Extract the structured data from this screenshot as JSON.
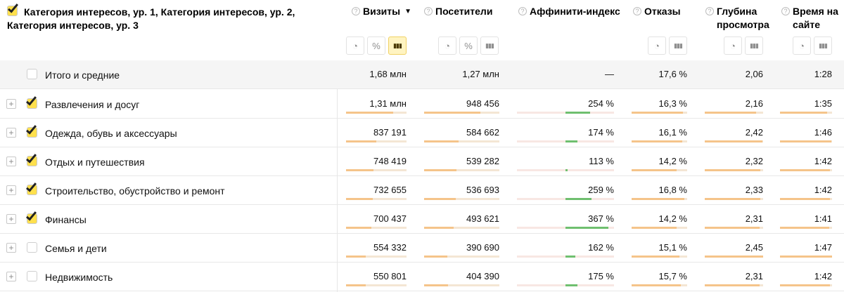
{
  "header": {
    "dimension_title": "Категория интересов, ур. 1, Категория интересов, ур. 2, Категория интересов, ур. 3",
    "columns": [
      {
        "key": "visits",
        "label": "Визиты",
        "sorted": true,
        "sort_icon": "▼",
        "buttons": [
          "pie-chart-icon",
          "percent-icon",
          "bar-chart-icon"
        ],
        "active_button": 2
      },
      {
        "key": "visitors",
        "label": "Посетители",
        "sorted": false,
        "buttons": [
          "pie-chart-icon",
          "percent-icon",
          "bar-chart-icon"
        ],
        "active_button": -1
      },
      {
        "key": "affinity",
        "label": "Аффинити-индекс",
        "sorted": false,
        "buttons": [],
        "active_button": -1
      },
      {
        "key": "bounce",
        "label": "Отказы",
        "sorted": false,
        "buttons": [
          "pie-chart-icon",
          "bar-chart-icon"
        ],
        "active_button": -1
      },
      {
        "key": "depth",
        "label": "Глубина просмотра",
        "sorted": false,
        "buttons": [
          "pie-chart-icon",
          "bar-chart-icon"
        ],
        "active_button": -1
      },
      {
        "key": "time",
        "label": "Время на сайте",
        "sorted": false,
        "buttons": [
          "pie-chart-icon",
          "bar-chart-icon"
        ],
        "active_button": -1
      }
    ]
  },
  "total": {
    "label": "Итого и средние",
    "visits": "1,68 млн",
    "visitors": "1,27 млн",
    "affinity": "—",
    "bounce": "17,6 %",
    "depth": "2,06",
    "time": "1:28"
  },
  "rows": [
    {
      "label": "Развлечения и досуг",
      "checked": true,
      "visits": "1,31 млн",
      "visitors": "948 456",
      "affinity": "254 %",
      "bounce": "16,3 %",
      "depth": "2,16",
      "time": "1:35",
      "visits_frac": 0.78,
      "visitors_frac": 0.75,
      "affinity_val": 254,
      "bounce_frac": 0.93,
      "depth_frac": 0.88,
      "time_frac": 0.91
    },
    {
      "label": "Одежда, обувь и аксессуары",
      "checked": true,
      "visits": "837 191",
      "visitors": "584 662",
      "affinity": "174 %",
      "bounce": "16,1 %",
      "depth": "2,42",
      "time": "1:46",
      "visits_frac": 0.5,
      "visitors_frac": 0.46,
      "affinity_val": 174,
      "bounce_frac": 0.91,
      "depth_frac": 0.99,
      "time_frac": 0.98
    },
    {
      "label": "Отдых и путешествия",
      "checked": true,
      "visits": "748 419",
      "visitors": "539 282",
      "affinity": "113 %",
      "bounce": "14,2 %",
      "depth": "2,32",
      "time": "1:42",
      "visits_frac": 0.45,
      "visitors_frac": 0.43,
      "affinity_val": 113,
      "bounce_frac": 0.81,
      "depth_frac": 0.95,
      "time_frac": 0.96
    },
    {
      "label": "Строительство, обустройство и ремонт",
      "checked": true,
      "visits": "732 655",
      "visitors": "536 693",
      "affinity": "259 %",
      "bounce": "16,8 %",
      "depth": "2,33",
      "time": "1:42",
      "visits_frac": 0.44,
      "visitors_frac": 0.42,
      "affinity_val": 259,
      "bounce_frac": 0.95,
      "depth_frac": 0.95,
      "time_frac": 0.96
    },
    {
      "label": "Финансы",
      "checked": true,
      "visits": "700 437",
      "visitors": "493 621",
      "affinity": "367 %",
      "bounce": "14,2 %",
      "depth": "2,31",
      "time": "1:41",
      "visits_frac": 0.42,
      "visitors_frac": 0.39,
      "affinity_val": 367,
      "bounce_frac": 0.81,
      "depth_frac": 0.94,
      "time_frac": 0.95
    },
    {
      "label": "Семья и дети",
      "checked": false,
      "visits": "554 332",
      "visitors": "390 690",
      "affinity": "162 %",
      "bounce": "15,1 %",
      "depth": "2,45",
      "time": "1:47",
      "visits_frac": 0.33,
      "visitors_frac": 0.31,
      "affinity_val": 162,
      "bounce_frac": 0.86,
      "depth_frac": 1.0,
      "time_frac": 1.0
    },
    {
      "label": "Недвижимость",
      "checked": false,
      "visits": "550 801",
      "visitors": "404 390",
      "affinity": "175 %",
      "bounce": "15,7 %",
      "depth": "2,31",
      "time": "1:42",
      "visits_frac": 0.33,
      "visitors_frac": 0.32,
      "affinity_val": 175,
      "bounce_frac": 0.89,
      "depth_frac": 0.94,
      "time_frac": 0.96
    }
  ],
  "icons": {
    "help": "question-icon",
    "expand": "plus-icon",
    "check": "checkmark-icon"
  },
  "colors": {
    "bar": "#f5c48a",
    "bar_track": "#f4e6d4",
    "affinity_pos": "#6fbf6f",
    "affinity_track": "#f8e7e3",
    "checkbox_checked": "#ffe04d",
    "total_bg": "#f5f5f5"
  }
}
